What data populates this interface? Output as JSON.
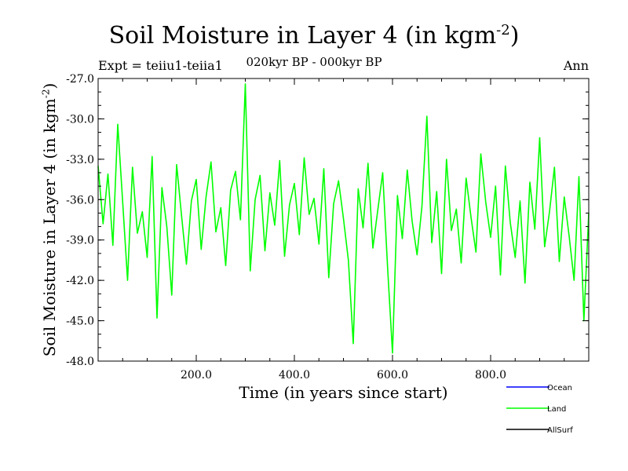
{
  "chart_data": {
    "type": "line",
    "title": "Soil Moisture in Layer 4 (in kgm",
    "title_sup": "-2",
    "title_suffix": ")",
    "subtitle": "020kyr BP - 000kyr BP",
    "expt_label": "Expt = teiiu1-teiia1",
    "season_label": "Ann",
    "xlabel": "Time (in years since start)",
    "ylabel": "Soil Moisture in Layer 4 (in kgm",
    "ylabel_sup": "-2",
    "ylabel_suffix": ")",
    "xlim": [
      0,
      1000
    ],
    "ylim": [
      -48.0,
      -27.0
    ],
    "x_ticks": [
      200,
      400,
      600,
      800
    ],
    "x_tick_labels": [
      "200.0",
      "400.0",
      "600.0",
      "800.0"
    ],
    "y_ticks": [
      -27,
      -30,
      -33,
      -36,
      -39,
      -42,
      -45,
      -48
    ],
    "y_tick_labels": [
      "-27.0",
      "-30.0",
      "-33.0",
      "-36.0",
      "-39.0",
      "-42.0",
      "-45.0",
      "-48.0"
    ],
    "grid": false,
    "legend_position": "bottom-right",
    "series": [
      {
        "name": "Ocean",
        "color": "#0000ff",
        "x": [],
        "y": []
      },
      {
        "name": "Land",
        "color": "#00ff00",
        "x": [
          0,
          10,
          20,
          30,
          40,
          50,
          60,
          70,
          80,
          90,
          100,
          110,
          120,
          130,
          140,
          150,
          160,
          170,
          180,
          190,
          200,
          210,
          220,
          230,
          240,
          250,
          260,
          270,
          280,
          290,
          300,
          310,
          320,
          330,
          340,
          350,
          360,
          370,
          380,
          390,
          400,
          410,
          420,
          430,
          440,
          450,
          460,
          470,
          480,
          490,
          500,
          510,
          520,
          530,
          540,
          550,
          560,
          570,
          580,
          590,
          600,
          610,
          620,
          630,
          640,
          650,
          660,
          670,
          680,
          690,
          700,
          710,
          720,
          730,
          740,
          750,
          760,
          770,
          780,
          790,
          800,
          810,
          820,
          830,
          840,
          850,
          860,
          870,
          880,
          890,
          900,
          910,
          920,
          930,
          940,
          950,
          960,
          970,
          980,
          990,
          1000
        ],
        "y": [
          -33.5,
          -37.8,
          -34.1,
          -39.4,
          -30.4,
          -36.2,
          -42.0,
          -33.6,
          -38.5,
          -36.9,
          -40.3,
          -32.8,
          -44.8,
          -35.1,
          -38.0,
          -43.1,
          -33.4,
          -37.2,
          -40.8,
          -36.1,
          -34.5,
          -39.7,
          -35.8,
          -33.2,
          -38.4,
          -36.6,
          -40.9,
          -35.3,
          -33.9,
          -37.5,
          -27.4,
          -41.3,
          -36.0,
          -34.2,
          -39.8,
          -35.5,
          -37.9,
          -33.1,
          -40.2,
          -36.4,
          -34.8,
          -38.6,
          -32.9,
          -37.1,
          -35.9,
          -39.3,
          -33.7,
          -41.8,
          -36.3,
          -34.6,
          -37.4,
          -40.5,
          -46.7,
          -35.2,
          -38.1,
          -33.3,
          -39.6,
          -36.8,
          -34.0,
          -41.1,
          -47.4,
          -35.7,
          -38.9,
          -33.8,
          -37.6,
          -40.1,
          -36.5,
          -29.8,
          -39.2,
          -35.4,
          -41.5,
          -33.0,
          -38.3,
          -36.7,
          -40.7,
          -34.4,
          -37.3,
          -39.9,
          -32.6,
          -36.2,
          -38.8,
          -35.0,
          -41.6,
          -33.5,
          -37.7,
          -40.3,
          -36.1,
          -42.2,
          -34.7,
          -38.2,
          -31.4,
          -39.5,
          -36.9,
          -33.6,
          -40.6,
          -35.8,
          -38.7,
          -42.0,
          -34.3,
          -45.0,
          -37.0
        ]
      },
      {
        "name": "AllSurf",
        "color": "#000000",
        "x": [],
        "y": []
      }
    ]
  }
}
